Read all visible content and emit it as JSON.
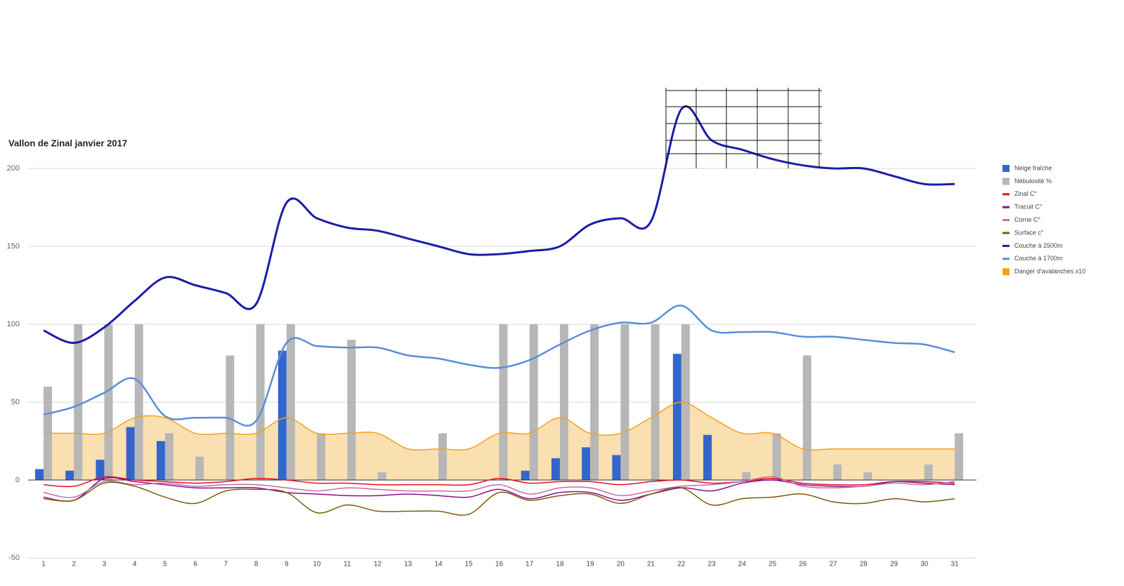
{
  "chart_data": {
    "type": "combo",
    "title": "Vallon de Zinal janvier 2017",
    "categories": [
      "1",
      "2",
      "3",
      "4",
      "5",
      "6",
      "7",
      "8",
      "9",
      "10",
      "11",
      "12",
      "13",
      "14",
      "15",
      "16",
      "17",
      "18",
      "19",
      "20",
      "21",
      "22",
      "23",
      "24",
      "25",
      "26",
      "27",
      "28",
      "29",
      "30",
      "31"
    ],
    "ylim": [
      -50,
      250
    ],
    "yticks": [
      -50,
      0,
      50,
      100,
      150,
      200
    ],
    "grid": true,
    "legend": "right",
    "series": [
      {
        "name": "Neige fraîche",
        "type": "bar",
        "color": "#3366cc",
        "values": [
          7,
          6,
          13,
          34,
          25,
          0,
          0,
          0,
          83,
          0,
          0,
          0,
          0,
          0,
          0,
          0,
          6,
          14,
          21,
          16,
          0,
          81,
          29,
          0,
          0,
          0,
          0,
          0,
          0,
          0,
          0
        ]
      },
      {
        "name": "Nébulosité %",
        "type": "bar",
        "color": "#b7b7b7",
        "values": [
          60,
          100,
          100,
          100,
          30,
          15,
          80,
          100,
          100,
          30,
          90,
          5,
          0,
          30,
          0,
          100,
          100,
          100,
          100,
          100,
          100,
          100,
          0,
          5,
          30,
          80,
          10,
          5,
          0,
          10,
          30
        ]
      },
      {
        "name": "Zinal C°",
        "type": "line",
        "color": "#e8101a",
        "values": [
          -3,
          -4,
          2,
          0,
          -1,
          -2,
          -1,
          1,
          0,
          -2,
          -2,
          -3,
          -3,
          -3,
          -3,
          1,
          -2,
          -1,
          -1,
          -3,
          -1,
          0,
          -2,
          -1,
          1,
          -2,
          -3,
          -3,
          -1,
          -1,
          -2
        ]
      },
      {
        "name": "Tracuit C°",
        "type": "line",
        "color": "#8e0e8e",
        "values": [
          -11,
          -13,
          1,
          -1,
          -3,
          -5,
          -5,
          -5,
          -8,
          -9,
          -10,
          -10,
          -9,
          -10,
          -11,
          -6,
          -12,
          -8,
          -8,
          -13,
          -9,
          -5,
          -7,
          -2,
          0,
          -3,
          -4,
          -4,
          -1,
          -2,
          -3
        ]
      },
      {
        "name": "Corne C°",
        "type": "line",
        "color": "#c66aa6",
        "values": [
          -8,
          -11,
          -1,
          -3,
          -2,
          -4,
          -3,
          -3,
          -5,
          -7,
          -5,
          -6,
          -7,
          -7,
          -7,
          -3,
          -9,
          -5,
          -5,
          -10,
          -7,
          -4,
          -3,
          -1,
          2,
          -4,
          -5,
          -4,
          -2,
          -3,
          -1
        ]
      },
      {
        "name": "Surface c°",
        "type": "line",
        "color": "#7b5e0a",
        "values": [
          -12,
          -13,
          -2,
          -4,
          -11,
          -15,
          -7,
          -6,
          -8,
          -21,
          -16,
          -20,
          -20,
          -20,
          -22,
          -8,
          -13,
          -10,
          -9,
          -15,
          -9,
          -5,
          -16,
          -12,
          -11,
          -9,
          -14,
          -15,
          -12,
          -14,
          -12
        ]
      },
      {
        "name": "Couche à 2500m",
        "type": "line",
        "color": "#1c1ca8",
        "values": [
          96,
          88,
          98,
          115,
          130,
          125,
          120,
          113,
          178,
          168,
          162,
          160,
          155,
          150,
          145,
          145,
          147,
          150,
          164,
          168,
          166,
          238,
          218,
          212,
          206,
          202,
          200,
          200,
          195,
          190,
          190
        ]
      },
      {
        "name": "Couche à 1700m",
        "type": "line",
        "color": "#5a8ed8",
        "values": [
          42,
          47,
          56,
          65,
          41,
          40,
          40,
          38,
          88,
          86,
          85,
          85,
          80,
          78,
          74,
          72,
          77,
          87,
          96,
          101,
          101,
          112,
          96,
          95,
          95,
          92,
          92,
          90,
          88,
          87,
          82
        ]
      },
      {
        "name": "Danger d'avalanches x10",
        "type": "area",
        "color": "#f2a21d",
        "values": [
          30,
          30,
          30,
          40,
          40,
          30,
          30,
          30,
          40,
          30,
          30,
          30,
          20,
          20,
          20,
          30,
          30,
          40,
          30,
          30,
          40,
          50,
          40,
          30,
          30,
          20,
          20,
          20,
          20,
          20,
          20
        ]
      }
    ]
  }
}
